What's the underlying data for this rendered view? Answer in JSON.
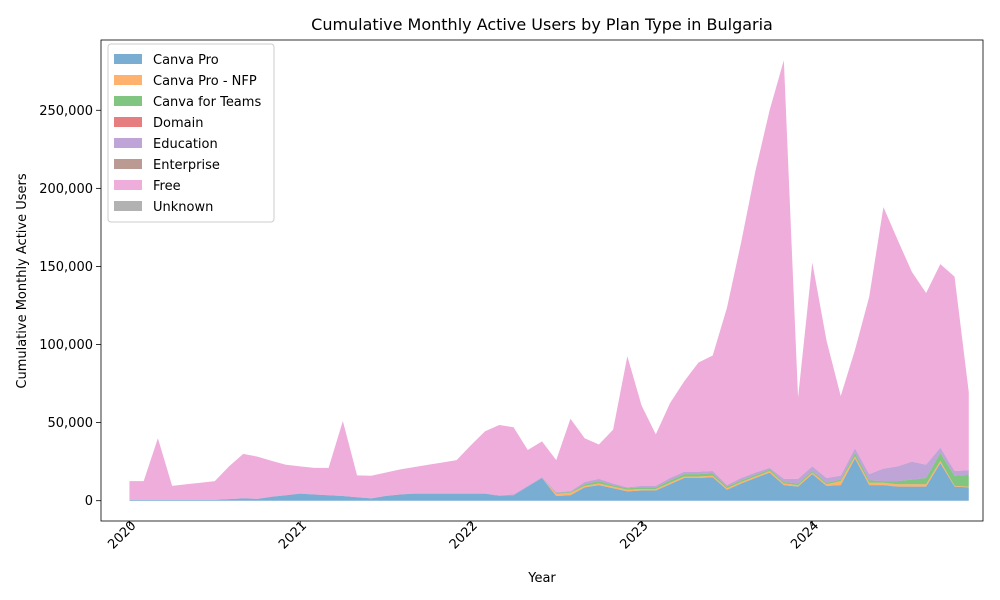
{
  "chart_data": {
    "type": "area",
    "stacked": true,
    "title": "Cumulative Monthly Active Users by Plan Type in Bulgaria",
    "xlabel": "Year",
    "ylabel": "Cumulative Monthly Active Users",
    "xlim": [
      "2019-11",
      "2025-01"
    ],
    "ylim": [
      -13000,
      295000
    ],
    "x_ticks": [
      "2020",
      "2021",
      "2022",
      "2023",
      "2024"
    ],
    "y_ticks": [
      "0",
      "50,000",
      "100,000",
      "150,000",
      "200,000",
      "250,000"
    ],
    "y_tick_values": [
      0,
      50000,
      100000,
      150000,
      200000,
      250000
    ],
    "grid": false,
    "legend_position": "top-left",
    "x": [
      "2020-01",
      "2020-02",
      "2020-03",
      "2020-04",
      "2020-05",
      "2020-06",
      "2020-07",
      "2020-08",
      "2020-09",
      "2020-10",
      "2020-11",
      "2020-12",
      "2021-01",
      "2021-02",
      "2021-03",
      "2021-04",
      "2021-05",
      "2021-06",
      "2021-07",
      "2021-08",
      "2021-09",
      "2021-10",
      "2021-11",
      "2021-12",
      "2022-01",
      "2022-02",
      "2022-03",
      "2022-04",
      "2022-05",
      "2022-06",
      "2022-07",
      "2022-08",
      "2022-09",
      "2022-10",
      "2022-11",
      "2022-12",
      "2023-01",
      "2023-02",
      "2023-03",
      "2023-04",
      "2023-05",
      "2023-06",
      "2023-07",
      "2023-08",
      "2023-09",
      "2023-10",
      "2023-11",
      "2023-12",
      "2024-01",
      "2024-02",
      "2024-03",
      "2024-04",
      "2024-05",
      "2024-06",
      "2024-07",
      "2024-08",
      "2024-09",
      "2024-10",
      "2024-11",
      "2024-12"
    ],
    "series": [
      {
        "name": "Canva Pro",
        "color": "#1f77b4",
        "values": [
          500,
          500,
          500,
          500,
          500,
          500,
          500,
          1000,
          1500,
          1200,
          2500,
          3500,
          4500,
          4000,
          3500,
          3000,
          2200,
          1500,
          3000,
          4000,
          4500,
          4500,
          4500,
          4500,
          4500,
          4500,
          3000,
          3500,
          9000,
          14500,
          3000,
          3500,
          8500,
          10000,
          8000,
          6000,
          6500,
          6500,
          10500,
          14500,
          14500,
          15000,
          7000,
          11000,
          14500,
          18000,
          10000,
          9000,
          17000,
          9500,
          10000,
          27000,
          10000,
          10000,
          9000,
          9000,
          9000,
          24000,
          9000,
          8500
        ]
      },
      {
        "name": "Canva Pro - NFP",
        "color": "#ff7f0e",
        "values": [
          0,
          0,
          0,
          0,
          0,
          0,
          0,
          0,
          0,
          0,
          0,
          0,
          0,
          0,
          0,
          0,
          0,
          0,
          0,
          0,
          0,
          0,
          0,
          0,
          0,
          0,
          0,
          0,
          0,
          0,
          1500,
          1500,
          1000,
          1000,
          1000,
          1000,
          1000,
          1000,
          1000,
          1000,
          1000,
          1000,
          1000,
          1000,
          1000,
          1000,
          1000,
          1000,
          1000,
          1000,
          2500,
          1500,
          1500,
          1500,
          1500,
          1500,
          1500,
          1500,
          500,
          500
        ]
      },
      {
        "name": "Canva for Teams",
        "color": "#2ca02c",
        "values": [
          0,
          0,
          0,
          0,
          0,
          0,
          0,
          0,
          0,
          0,
          0,
          0,
          0,
          0,
          0,
          0,
          0,
          0,
          0,
          0,
          0,
          0,
          0,
          0,
          0,
          0,
          0,
          0,
          0,
          0,
          500,
          500,
          1000,
          1500,
          1000,
          1000,
          1000,
          1000,
          1500,
          1500,
          1500,
          1500,
          1000,
          1000,
          1000,
          1000,
          1000,
          1000,
          1000,
          1000,
          1000,
          2000,
          1500,
          1000,
          2000,
          3000,
          4000,
          5000,
          6500,
          7500
        ]
      },
      {
        "name": "Domain",
        "color": "#d62728",
        "values": [
          0,
          0,
          0,
          0,
          0,
          0,
          0,
          0,
          0,
          0,
          0,
          0,
          0,
          0,
          0,
          0,
          0,
          0,
          0,
          0,
          0,
          0,
          0,
          0,
          0,
          0,
          0,
          0,
          0,
          0,
          0,
          0,
          0,
          0,
          0,
          0,
          0,
          0,
          0,
          0,
          0,
          0,
          0,
          0,
          0,
          0,
          0,
          0,
          0,
          0,
          0,
          0,
          0,
          0,
          0,
          0,
          0,
          0,
          0,
          0
        ]
      },
      {
        "name": "Education",
        "color": "#9467bd",
        "values": [
          0,
          0,
          0,
          0,
          0,
          0,
          0,
          0,
          0,
          0,
          0,
          0,
          0,
          0,
          0,
          0,
          0,
          0,
          0,
          0,
          0,
          0,
          0,
          0,
          0,
          0,
          500,
          500,
          500,
          500,
          500,
          500,
          1500,
          1500,
          1000,
          500,
          1000,
          1000,
          1500,
          1500,
          1500,
          1500,
          1000,
          1500,
          1500,
          1000,
          2000,
          3000,
          3000,
          3000,
          2500,
          3000,
          4000,
          8000,
          9500,
          11500,
          8500,
          3500,
          3000,
          3000
        ]
      },
      {
        "name": "Enterprise",
        "color": "#8c564b",
        "values": [
          0,
          0,
          0,
          0,
          0,
          0,
          0,
          0,
          0,
          0,
          0,
          0,
          0,
          0,
          0,
          0,
          0,
          0,
          0,
          0,
          0,
          0,
          0,
          0,
          0,
          0,
          0,
          0,
          0,
          0,
          0,
          0,
          0,
          0,
          0,
          0,
          0,
          0,
          0,
          0,
          0,
          0,
          0,
          0,
          0,
          0,
          0,
          0,
          0,
          0,
          0,
          0,
          0,
          0,
          0,
          0,
          0,
          0,
          0,
          0
        ]
      },
      {
        "name": "Free",
        "color": "#e377c2",
        "values": [
          12000,
          12000,
          39500,
          9000,
          10000,
          11000,
          12000,
          21000,
          28500,
          27000,
          23000,
          19500,
          17500,
          17000,
          17500,
          48000,
          14000,
          14500,
          15000,
          16000,
          17000,
          18500,
          20000,
          21500,
          31000,
          40000,
          45000,
          43000,
          23000,
          23000,
          20500,
          46500,
          28000,
          22000,
          34500,
          84000,
          51500,
          33000,
          48000,
          58000,
          70000,
          74000,
          113500,
          151000,
          193000,
          229000,
          268000,
          52000,
          130500,
          88000,
          51000,
          63000,
          113500,
          167500,
          145000,
          121500,
          110000,
          117500,
          124500,
          50000
        ]
      },
      {
        "name": "Unknown",
        "color": "#7f7f7f",
        "values": [
          0,
          0,
          0,
          0,
          0,
          0,
          0,
          0,
          0,
          0,
          0,
          0,
          0,
          0,
          0,
          0,
          0,
          0,
          0,
          0,
          0,
          0,
          0,
          0,
          0,
          0,
          0,
          0,
          0,
          0,
          0,
          0,
          0,
          0,
          0,
          0,
          0,
          0,
          0,
          0,
          0,
          0,
          0,
          0,
          0,
          0,
          0,
          0,
          0,
          0,
          0,
          0,
          0,
          0,
          0,
          0,
          0,
          0,
          0,
          0
        ]
      }
    ]
  }
}
